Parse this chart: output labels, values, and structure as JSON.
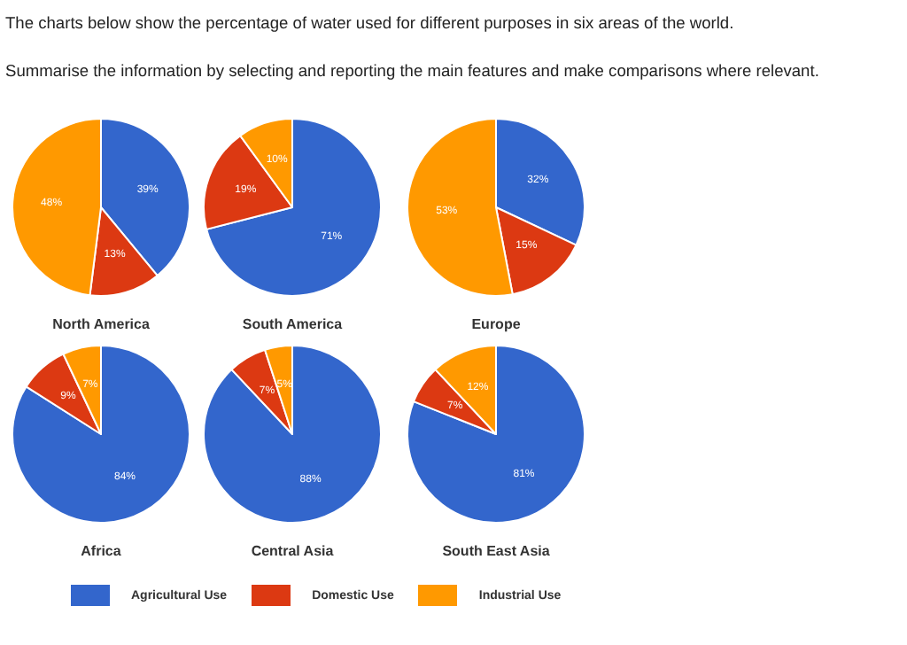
{
  "chart_data": [
    {
      "type": "pie",
      "title": "North America",
      "categories": [
        "Agricultural Use",
        "Domestic Use",
        "Industrial Use"
      ],
      "values": [
        39,
        13,
        48
      ],
      "colors": [
        "#3366cc",
        "#dc3912",
        "#ff9900"
      ],
      "value_labels": [
        "39%",
        "13%",
        "48%"
      ],
      "legend": "bottom",
      "annotations": [
        "The charts below show the percentage of water used for different purposes in six areas of the world.",
        "Summarise the information by selecting and reporting the main features and make comparisons where relevant."
      ]
    },
    {
      "type": "pie",
      "title": "South America",
      "categories": [
        null,
        null,
        null
      ],
      "values": [
        71,
        19,
        10
      ],
      "colors": [
        "#3366cc",
        "#dc3912",
        "#ff9900"
      ],
      "value_labels": [
        "71%",
        "19%",
        "10%"
      ]
    },
    {
      "type": "pie",
      "title": "Europe",
      "categories": [
        null,
        null,
        null
      ],
      "values": [
        32,
        15,
        53
      ],
      "colors": [
        "#3366cc",
        "#dc3912",
        "#ff9900"
      ],
      "value_labels": [
        "32%",
        "15%",
        "53%"
      ]
    },
    {
      "type": "pie",
      "title": "Africa",
      "categories": [
        null,
        null,
        null
      ],
      "values": [
        84,
        9,
        7
      ],
      "colors": [
        "#3366cc",
        "#dc3912",
        "#ff9900"
      ],
      "value_labels": [
        "84%",
        "9%",
        "7%"
      ]
    },
    {
      "type": "pie",
      "title": "Central Asia",
      "categories": [
        null,
        null,
        null
      ],
      "values": [
        88,
        7,
        5
      ],
      "colors": [
        "#3366cc",
        "#dc3912",
        "#ff9900"
      ],
      "value_labels": [
        "88%",
        "7%",
        "5%"
      ]
    },
    {
      "type": "pie",
      "title": "South East Asia",
      "categories": [
        null,
        null,
        null
      ],
      "values": [
        81,
        7,
        12
      ],
      "colors": [
        "#3366cc",
        "#dc3912",
        "#ff9900"
      ],
      "value_labels": [
        "81%",
        "7%",
        "12%"
      ]
    }
  ]
}
